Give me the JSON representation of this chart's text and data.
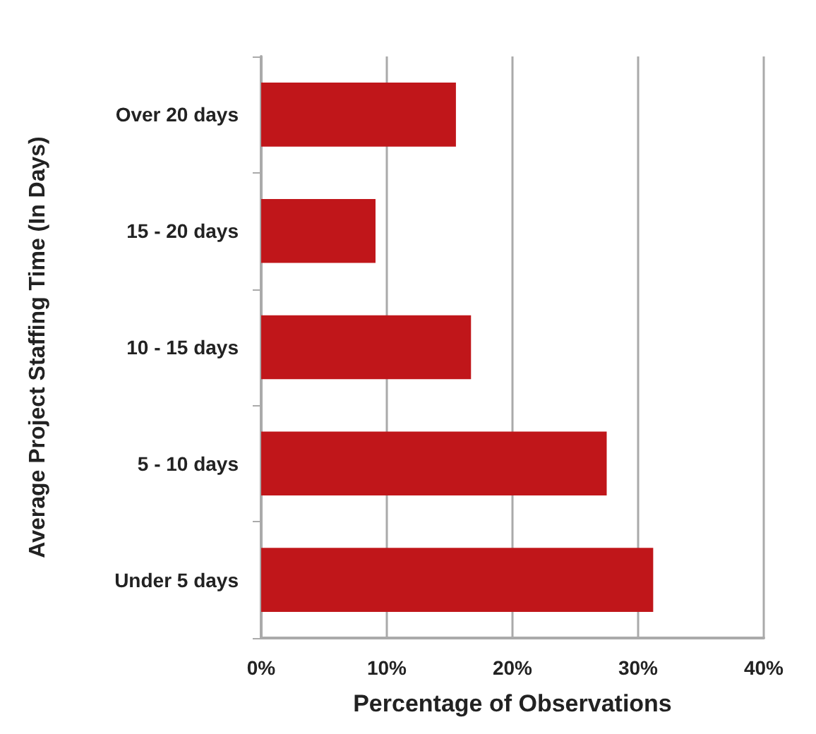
{
  "chart_data": {
    "type": "bar",
    "orientation": "horizontal",
    "xlabel": "Percentage of Observations",
    "ylabel": "Average Project Staffing Time (In Days)",
    "categories": [
      "Over 20 days",
      "15 - 20 days",
      "10 - 15 days",
      "5 - 10 days",
      "Under 5 days"
    ],
    "values": [
      15.5,
      9.1,
      16.7,
      27.5,
      31.2
    ],
    "color": "#c0161a",
    "xlim": [
      0,
      40
    ],
    "xticks": [
      {
        "value": 0,
        "label": "0%"
      },
      {
        "value": 10,
        "label": "10%"
      },
      {
        "value": 20,
        "label": "20%"
      },
      {
        "value": 30,
        "label": "30%"
      },
      {
        "value": 40,
        "label": "40%"
      }
    ],
    "grid": "x"
  }
}
